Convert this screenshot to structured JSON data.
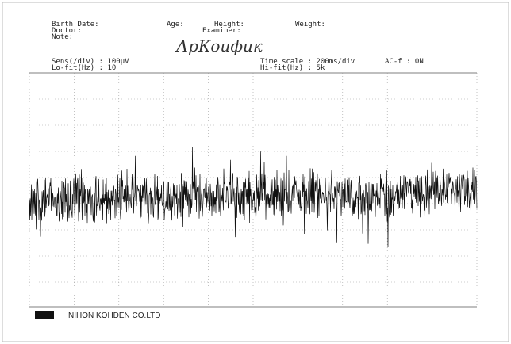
{
  "header": {
    "birth_date": "Birth Date:",
    "age": "Age:",
    "height": "Height:",
    "weight": "Weight:",
    "doctor": "Doctor:",
    "examiner": "Examiner:",
    "note": "Note:",
    "handwriting": "АрКоифик"
  },
  "settings": {
    "sens": "Sens(/div) : 100μV",
    "lo_filter": "Lo-fit(Hz) :   10",
    "time_scale": "Time scale : 200ms/div",
    "ac_filter": "AC-f : ON",
    "hi_filter": "Hi-fit(Hz) :    5k"
  },
  "footer": {
    "company": "NIHON KOHDEN CO.LTD"
  }
}
